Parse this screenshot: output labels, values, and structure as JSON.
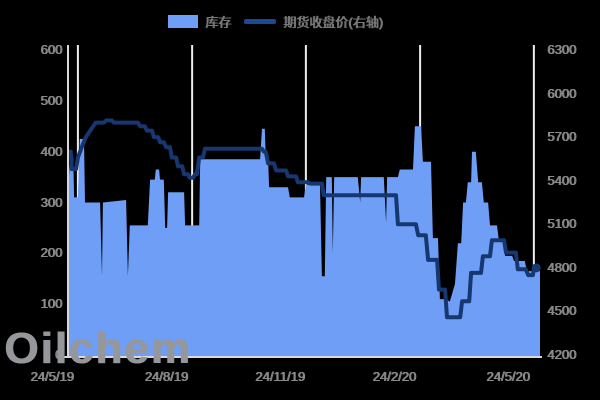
{
  "page": {
    "background": "#000000"
  },
  "watermark": "Oilchem",
  "legend": {
    "items": [
      {
        "label": "库存",
        "marker": "area-swatch",
        "color": "#6e9ef5"
      },
      {
        "label": "期货收盘价(右轴)",
        "marker": "line-swatch",
        "color": "#1b4a94"
      }
    ]
  },
  "colors": {
    "area": "#6e9ef5",
    "line": "#16376f",
    "gridline": "#ededed",
    "axis": "#d9d9d9",
    "tick_text": "#8a8a8a"
  },
  "chart_data": {
    "type": "combo",
    "title": "",
    "grid": "vertical-only",
    "legend_position": "top-center",
    "left_axis": {
      "min": 0,
      "max": 600,
      "tick_step": 100,
      "tick_labels": [
        "600",
        "500",
        "400",
        "300",
        "200",
        "100",
        "0"
      ]
    },
    "right_axis": {
      "min": 4200,
      "max": 6300,
      "tick_step": 300,
      "tick_labels": [
        "6300",
        "6000",
        "5700",
        "5400",
        "5100",
        "4800",
        "4500",
        "4200"
      ]
    },
    "x_axis": {
      "tick_labels": [
        "24/5/19",
        "24/8/19",
        "24/11/19",
        "24/2/20",
        "24/5/20"
      ],
      "gridline_pct": [
        2.1,
        26.3,
        50.4,
        74.6,
        98.7
      ]
    },
    "series": [
      {
        "name": "库存",
        "type": "area",
        "axis": "left",
        "color": "#6e9ef5",
        "points": [
          [
            0.0,
            310
          ],
          [
            0.4,
            390
          ],
          [
            1.1,
            390
          ],
          [
            1.3,
            310
          ],
          [
            2.1,
            310
          ],
          [
            2.5,
            425
          ],
          [
            3.4,
            425
          ],
          [
            3.6,
            300
          ],
          [
            6.8,
            300
          ],
          [
            7.2,
            155
          ],
          [
            7.4,
            300
          ],
          [
            12.3,
            305
          ],
          [
            12.7,
            155
          ],
          [
            13.1,
            255
          ],
          [
            16.9,
            255
          ],
          [
            17.4,
            345
          ],
          [
            18.4,
            345
          ],
          [
            18.6,
            365
          ],
          [
            19.3,
            365
          ],
          [
            19.5,
            345
          ],
          [
            20.3,
            345
          ],
          [
            20.6,
            250
          ],
          [
            21.0,
            250
          ],
          [
            21.2,
            320
          ],
          [
            24.6,
            320
          ],
          [
            24.8,
            255
          ],
          [
            27.8,
            255
          ],
          [
            28.0,
            385
          ],
          [
            40.7,
            385
          ],
          [
            41.1,
            445
          ],
          [
            41.7,
            445
          ],
          [
            41.9,
            385
          ],
          [
            42.4,
            385
          ],
          [
            42.6,
            330
          ],
          [
            46.6,
            330
          ],
          [
            47.0,
            310
          ],
          [
            50.0,
            310
          ],
          [
            50.4,
            335
          ],
          [
            53.4,
            335
          ],
          [
            53.8,
            155
          ],
          [
            54.4,
            155
          ],
          [
            54.7,
            350
          ],
          [
            55.9,
            350
          ],
          [
            56.1,
            200
          ],
          [
            56.4,
            350
          ],
          [
            61.4,
            350
          ],
          [
            61.9,
            300
          ],
          [
            62.1,
            350
          ],
          [
            66.9,
            350
          ],
          [
            67.4,
            260
          ],
          [
            67.6,
            350
          ],
          [
            69.9,
            350
          ],
          [
            70.3,
            365
          ],
          [
            73.1,
            365
          ],
          [
            73.5,
            450
          ],
          [
            74.8,
            450
          ],
          [
            75.2,
            380
          ],
          [
            76.9,
            380
          ],
          [
            77.3,
            230
          ],
          [
            78.4,
            230
          ],
          [
            78.8,
            110
          ],
          [
            80.1,
            110
          ],
          [
            80.9,
            105
          ],
          [
            82.0,
            140
          ],
          [
            82.6,
            220
          ],
          [
            83.3,
            220
          ],
          [
            83.7,
            300
          ],
          [
            84.3,
            300
          ],
          [
            84.7,
            340
          ],
          [
            85.4,
            340
          ],
          [
            85.6,
            400
          ],
          [
            86.4,
            400
          ],
          [
            86.9,
            340
          ],
          [
            87.7,
            340
          ],
          [
            88.1,
            300
          ],
          [
            89.0,
            300
          ],
          [
            89.4,
            255
          ],
          [
            90.9,
            255
          ],
          [
            91.3,
            225
          ],
          [
            92.2,
            225
          ],
          [
            92.6,
            195
          ],
          [
            94.1,
            195
          ],
          [
            94.5,
            185
          ],
          [
            96.8,
            185
          ],
          [
            97.2,
            165
          ],
          [
            100.0,
            165
          ]
        ]
      },
      {
        "name": "期货收盘价(右轴)",
        "type": "line",
        "axis": "right",
        "color": "#16376f",
        "stroke_width": 4,
        "end_dot": true,
        "points": [
          [
            0.0,
            5600
          ],
          [
            0.6,
            5600
          ],
          [
            0.8,
            5480
          ],
          [
            1.7,
            5480
          ],
          [
            2.1,
            5560
          ],
          [
            3.0,
            5640
          ],
          [
            3.8,
            5700
          ],
          [
            4.7,
            5745
          ],
          [
            5.9,
            5800
          ],
          [
            7.6,
            5800
          ],
          [
            8.1,
            5815
          ],
          [
            9.3,
            5815
          ],
          [
            9.7,
            5800
          ],
          [
            14.8,
            5800
          ],
          [
            15.3,
            5775
          ],
          [
            16.3,
            5775
          ],
          [
            16.7,
            5745
          ],
          [
            17.8,
            5745
          ],
          [
            18.2,
            5700
          ],
          [
            19.1,
            5700
          ],
          [
            19.5,
            5665
          ],
          [
            20.3,
            5665
          ],
          [
            20.8,
            5630
          ],
          [
            21.6,
            5630
          ],
          [
            22.0,
            5560
          ],
          [
            22.9,
            5560
          ],
          [
            23.3,
            5500
          ],
          [
            24.2,
            5500
          ],
          [
            24.6,
            5445
          ],
          [
            25.4,
            5445
          ],
          [
            25.8,
            5420
          ],
          [
            26.5,
            5420
          ],
          [
            26.9,
            5445
          ],
          [
            27.3,
            5445
          ],
          [
            27.8,
            5560
          ],
          [
            28.6,
            5560
          ],
          [
            29.0,
            5620
          ],
          [
            41.1,
            5620
          ],
          [
            41.5,
            5600
          ],
          [
            41.9,
            5600
          ],
          [
            42.4,
            5520
          ],
          [
            43.6,
            5520
          ],
          [
            44.1,
            5470
          ],
          [
            46.2,
            5470
          ],
          [
            46.6,
            5430
          ],
          [
            48.3,
            5430
          ],
          [
            48.7,
            5390
          ],
          [
            50.8,
            5390
          ],
          [
            51.3,
            5380
          ],
          [
            53.8,
            5380
          ],
          [
            54.2,
            5300
          ],
          [
            69.5,
            5300
          ],
          [
            69.9,
            5100
          ],
          [
            73.7,
            5100
          ],
          [
            74.2,
            5025
          ],
          [
            75.8,
            5025
          ],
          [
            76.3,
            4855
          ],
          [
            78.2,
            4855
          ],
          [
            78.6,
            4650
          ],
          [
            79.9,
            4650
          ],
          [
            80.3,
            4460
          ],
          [
            83.1,
            4460
          ],
          [
            83.5,
            4570
          ],
          [
            85.0,
            4570
          ],
          [
            85.4,
            4765
          ],
          [
            87.5,
            4765
          ],
          [
            87.9,
            4880
          ],
          [
            89.4,
            4880
          ],
          [
            89.8,
            4990
          ],
          [
            92.4,
            4990
          ],
          [
            92.8,
            4905
          ],
          [
            94.9,
            4905
          ],
          [
            95.3,
            4790
          ],
          [
            97.0,
            4790
          ],
          [
            97.5,
            4750
          ],
          [
            98.5,
            4750
          ],
          [
            98.7,
            4800
          ],
          [
            99.2,
            4800
          ]
        ]
      }
    ]
  }
}
